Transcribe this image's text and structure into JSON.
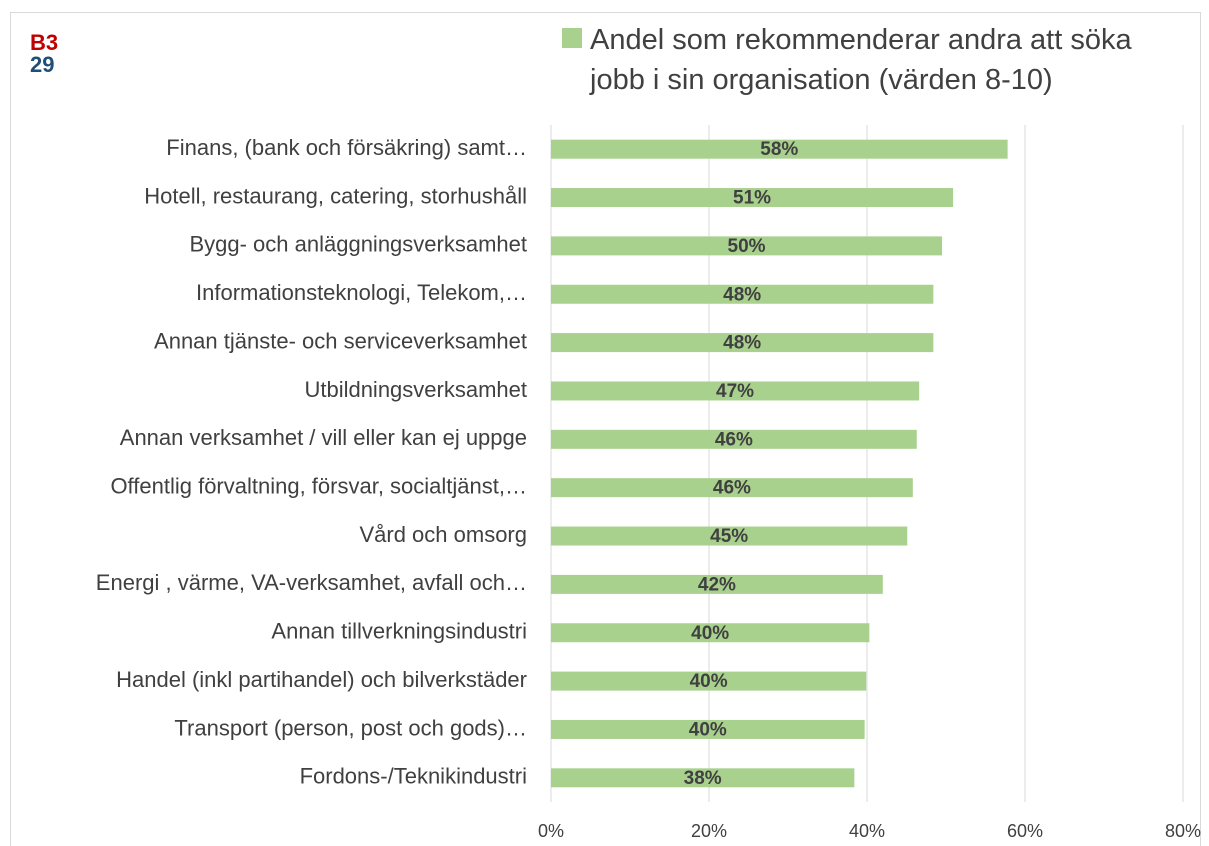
{
  "header": {
    "code": "B3",
    "number": "29"
  },
  "chart_data": {
    "type": "hbar",
    "categories": [
      "Finans, (bank och försäkring) samt…",
      "Hotell, restaurang, catering, storhushåll",
      "Bygg- och anläggningsverksamhet",
      "Informationsteknologi, Telekom,…",
      "Annan tjänste- och serviceverksamhet",
      "Utbildningsverksamhet",
      "Annan verksamhet / vill eller kan ej uppge",
      "Offentlig förvaltning, försvar,  socialtjänst,…",
      "Vård och omsorg",
      "Energi , värme, VA-verksamhet, avfall och…",
      "Annan tillverkningsindustri",
      "Handel (inkl partihandel) och bilverkstäder",
      "Transport (person, post och gods)…",
      "Fordons-/Teknikindustri"
    ],
    "series": [
      {
        "name": "Andel som rekommenderar andra att söka jobb i sin organisation (värden 8-10)",
        "color": "#a9d18e",
        "values": [
          57.8,
          50.9,
          49.5,
          48.4,
          48.4,
          46.6,
          46.3,
          45.8,
          45.1,
          42.0,
          40.3,
          39.9,
          39.7,
          38.4
        ],
        "value_labels": [
          "58%",
          "51%",
          "50%",
          "48%",
          "48%",
          "47%",
          "46%",
          "46%",
          "45%",
          "42%",
          "40%",
          "40%",
          "40%",
          "38%"
        ]
      }
    ],
    "xlim": [
      0,
      80
    ],
    "xticks": [
      {
        "value": 0,
        "label": "0%"
      },
      {
        "value": 20,
        "label": "20%"
      },
      {
        "value": 40,
        "label": "40%"
      },
      {
        "value": 60,
        "label": "60%"
      },
      {
        "value": 80,
        "label": "80%"
      }
    ],
    "grid": true,
    "legend": "top"
  }
}
